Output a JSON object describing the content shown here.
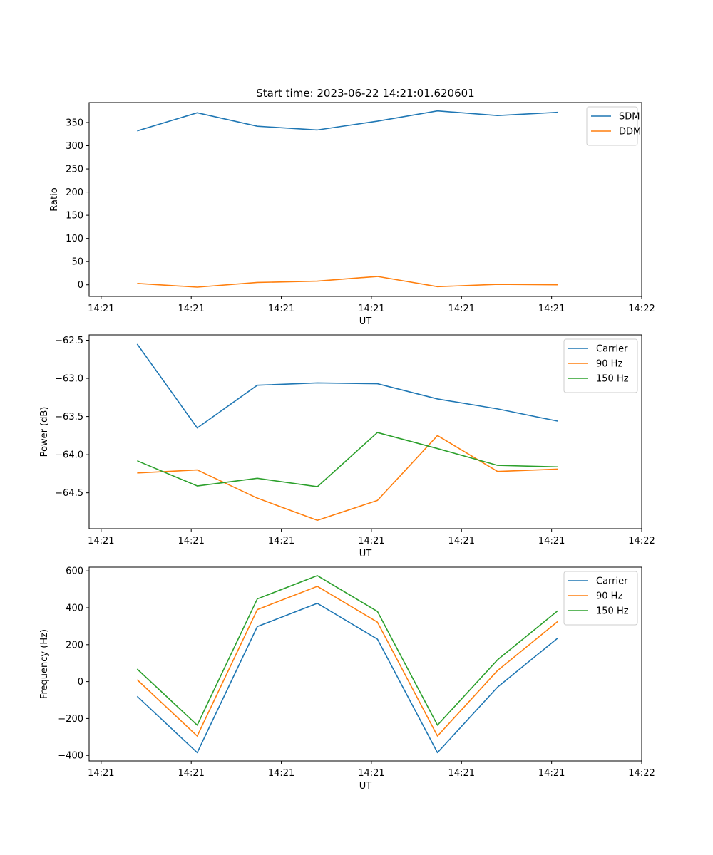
{
  "figure": {
    "title": "Start time: 2023-06-22 14:21:01.620601"
  },
  "chart_data": [
    {
      "type": "line",
      "xlabel": "UT",
      "ylabel": "Ratio",
      "x": [
        1,
        2,
        3,
        4,
        5,
        6,
        7,
        8
      ],
      "xlim": [
        0.2,
        9.4
      ],
      "xticks": [
        0.4,
        1.9,
        3.4,
        4.9,
        6.4,
        7.9,
        9.4
      ],
      "xtick_labels": [
        "14:21",
        "14:21",
        "14:21",
        "14:21",
        "14:21",
        "14:21",
        "14:22"
      ],
      "ylim": [
        -25,
        393
      ],
      "yticks": [
        0,
        50,
        100,
        150,
        200,
        250,
        300,
        350
      ],
      "ytick_labels": [
        "0",
        "50",
        "100",
        "150",
        "200",
        "250",
        "300",
        "350"
      ],
      "legend_position": "top-right",
      "series": [
        {
          "name": "SDM",
          "color": "#1f77b4",
          "values": [
            332,
            371,
            342,
            334,
            353,
            375,
            365,
            372
          ]
        },
        {
          "name": "DDM",
          "color": "#ff7f0e",
          "values": [
            3,
            -5,
            5,
            8,
            18,
            -4,
            1,
            0
          ]
        }
      ]
    },
    {
      "type": "line",
      "xlabel": "UT",
      "ylabel": "Power (dB)",
      "x": [
        1,
        2,
        3,
        4,
        5,
        6,
        7,
        8
      ],
      "xlim": [
        0.2,
        9.4
      ],
      "xticks": [
        0.4,
        1.9,
        3.4,
        4.9,
        6.4,
        7.9,
        9.4
      ],
      "xtick_labels": [
        "14:21",
        "14:21",
        "14:21",
        "14:21",
        "14:21",
        "14:21",
        "14:22"
      ],
      "ylim": [
        -64.97,
        -62.43
      ],
      "yticks": [
        -64.5,
        -64.0,
        -63.5,
        -63.0,
        -62.5
      ],
      "ytick_labels": [
        "−64.5",
        "−64.0",
        "−63.5",
        "−63.0",
        "−62.5"
      ],
      "legend_position": "top-right",
      "series": [
        {
          "name": "Carrier",
          "color": "#1f77b4",
          "values": [
            -62.55,
            -63.65,
            -63.09,
            -63.06,
            -63.07,
            -63.27,
            -63.4,
            -63.56
          ]
        },
        {
          "name": "90 Hz",
          "color": "#ff7f0e",
          "values": [
            -64.24,
            -64.2,
            -64.57,
            -64.86,
            -64.6,
            -63.75,
            -64.22,
            -64.19
          ]
        },
        {
          "name": "150 Hz",
          "color": "#2ca02c",
          "values": [
            -64.08,
            -64.41,
            -64.31,
            -64.42,
            -63.71,
            -63.92,
            -64.14,
            -64.16
          ]
        }
      ]
    },
    {
      "type": "line",
      "xlabel": "UT",
      "ylabel": "Frequency (Hz)",
      "x": [
        1,
        2,
        3,
        4,
        5,
        6,
        7,
        8
      ],
      "xlim": [
        0.2,
        9.4
      ],
      "xticks": [
        0.4,
        1.9,
        3.4,
        4.9,
        6.4,
        7.9,
        9.4
      ],
      "xtick_labels": [
        "14:21",
        "14:21",
        "14:21",
        "14:21",
        "14:21",
        "14:21",
        "14:22"
      ],
      "ylim": [
        -430,
        620
      ],
      "yticks": [
        -400,
        -200,
        0,
        200,
        400,
        600
      ],
      "ytick_labels": [
        "−400",
        "−200",
        "0",
        "200",
        "400",
        "600"
      ],
      "legend_position": "top-right",
      "series": [
        {
          "name": "Carrier",
          "color": "#1f77b4",
          "values": [
            -80,
            -385,
            298,
            424,
            230,
            -385,
            -30,
            235
          ]
        },
        {
          "name": "90 Hz",
          "color": "#ff7f0e",
          "values": [
            10,
            -295,
            390,
            516,
            322,
            -295,
            60,
            325
          ]
        },
        {
          "name": "150 Hz",
          "color": "#2ca02c",
          "values": [
            68,
            -236,
            448,
            574,
            380,
            -236,
            118,
            383
          ]
        }
      ]
    }
  ]
}
